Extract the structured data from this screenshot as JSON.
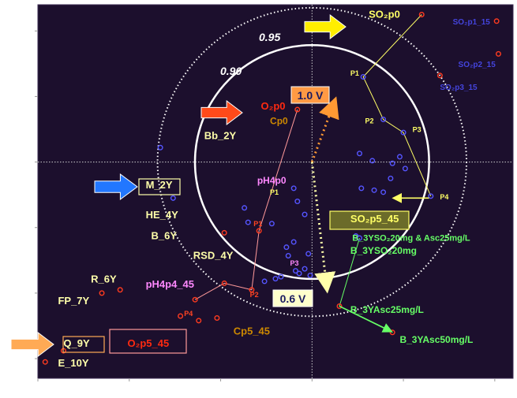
{
  "chart_data": {
    "type": "scatter",
    "title": "",
    "xlabel": "",
    "ylabel": "",
    "xlim": [
      -150,
      110
    ],
    "ylim": [
      -33,
      24
    ],
    "x_ticks": [
      -150,
      -100,
      -50,
      0,
      50,
      100
    ],
    "y_ticks": [
      -30,
      -20,
      -10,
      0,
      10,
      20
    ],
    "grid": false,
    "background": "#1c0f2d",
    "colors": {
      "red_point": "#ff3b1f",
      "blue_point": "#5555ff",
      "circle": "#ffffff",
      "yellow": "#ffff66",
      "salmon": "#ff8a80",
      "green": "#66ff66",
      "orange": "#ff9933"
    },
    "circle_labels": [
      "0.95",
      "0.90"
    ],
    "circle_radii": [
      0.95,
      0.9
    ],
    "voltage_labels": [
      "1.0 V",
      "0.6 V"
    ],
    "vector_1V": {
      "from": [
        0,
        0
      ],
      "to": [
        12,
        9
      ]
    },
    "vector_06V": {
      "from": [
        0,
        0
      ],
      "to": [
        8,
        -19
      ]
    },
    "series": [
      {
        "name": "red",
        "points": [
          {
            "x": 60,
            "y": 22.5
          },
          {
            "x": 101,
            "y": 21.5
          },
          {
            "x": 102,
            "y": 16.5
          },
          {
            "x": 70,
            "y": 13.2
          },
          {
            "x": -8,
            "y": 8
          },
          {
            "x": -48,
            "y": -10.8
          },
          {
            "x": -29,
            "y": -10.5
          },
          {
            "x": -33,
            "y": -19.5
          },
          {
            "x": -48,
            "y": -18.5
          },
          {
            "x": -64,
            "y": -21
          },
          {
            "x": -72,
            "y": -23.5
          },
          {
            "x": -62,
            "y": -24.2
          },
          {
            "x": -52,
            "y": -23.8
          },
          {
            "x": -105,
            "y": -19.5
          },
          {
            "x": -115,
            "y": -20
          },
          {
            "x": -136,
            "y": -28.8
          },
          {
            "x": -146,
            "y": -30.5
          },
          {
            "x": 15,
            "y": -22
          },
          {
            "x": 44,
            "y": -26
          }
        ]
      },
      {
        "name": "blue",
        "points": [
          {
            "x": -83,
            "y": 2.2
          },
          {
            "x": -76,
            "y": -5.5
          },
          {
            "x": 28,
            "y": 13
          },
          {
            "x": 39,
            "y": 6.5
          },
          {
            "x": 50,
            "y": 4.5
          },
          {
            "x": 65,
            "y": -5.2
          },
          {
            "x": 26,
            "y": 1.3
          },
          {
            "x": 33,
            "y": 0.2
          },
          {
            "x": 44,
            "y": -0.2
          },
          {
            "x": 51,
            "y": -1
          },
          {
            "x": 48,
            "y": 0.8
          },
          {
            "x": 43,
            "y": -2.5
          },
          {
            "x": 27,
            "y": -4
          },
          {
            "x": 34,
            "y": -4.3
          },
          {
            "x": 39,
            "y": -4.6
          },
          {
            "x": 24,
            "y": -11.3
          },
          {
            "x": 26,
            "y": -11.6
          },
          {
            "x": -10,
            "y": -4
          },
          {
            "x": -8,
            "y": -6
          },
          {
            "x": -4,
            "y": -8
          },
          {
            "x": -37,
            "y": -7
          },
          {
            "x": -35,
            "y": -9.2
          },
          {
            "x": -22,
            "y": -9.4
          },
          {
            "x": -14,
            "y": -13
          },
          {
            "x": -10,
            "y": -12.2
          },
          {
            "x": -2,
            "y": -14
          },
          {
            "x": -13,
            "y": -14.3
          },
          {
            "x": -9,
            "y": -16.6
          },
          {
            "x": -7,
            "y": -17
          },
          {
            "x": -1,
            "y": -17.3
          },
          {
            "x": -4,
            "y": -16.3
          },
          {
            "x": -17,
            "y": -17.5
          },
          {
            "x": -20,
            "y": -17.8
          },
          {
            "x": -26,
            "y": -18.2
          }
        ]
      }
    ],
    "trajectories": [
      {
        "name": "SO2",
        "color": "#ffff66",
        "points": [
          [
            60,
            22.5
          ],
          [
            28,
            13
          ],
          [
            39,
            6.5
          ],
          [
            50,
            4.5
          ],
          [
            65,
            -5.2
          ]
        ]
      },
      {
        "name": "pH4",
        "color": "#ff9a9a",
        "points": [
          [
            -8,
            8
          ],
          [
            -29,
            -10.5
          ],
          [
            -33,
            -19.5
          ],
          [
            -48,
            -18.5
          ],
          [
            -64,
            -21
          ]
        ]
      },
      {
        "name": "B_3Y",
        "color": "#66ff66",
        "points": [
          [
            26,
            -11.6
          ],
          [
            15,
            -22
          ],
          [
            44,
            -26
          ]
        ]
      }
    ],
    "point_labels": [
      {
        "name": "SO2p0",
        "text": "SO₂p0",
        "x": 31,
        "y": 22,
        "color": "#ffff66",
        "size": 13
      },
      {
        "name": "SO2p1_15",
        "text": "SO₂p1_15",
        "x": 77,
        "y": 21,
        "color": "#4444dd",
        "size": 10
      },
      {
        "name": "SO2p2_15",
        "text": "SO₂p2_15",
        "x": 80,
        "y": 14.5,
        "color": "#4444dd",
        "size": 10
      },
      {
        "name": "SO2p3_15",
        "text": "SO₂p3_15",
        "x": 70,
        "y": 11,
        "color": "#4444dd",
        "size": 10
      },
      {
        "name": "O2p0",
        "text": "O₂p0",
        "x": -28,
        "y": 8,
        "color": "#ff2a10",
        "size": 13
      },
      {
        "name": "Cp0",
        "text": "Cp0",
        "x": -23,
        "y": 5.8,
        "color": "#cc8800",
        "size": 12
      },
      {
        "name": "Bb_2Y",
        "text": "Bb_2Y",
        "x": -59,
        "y": 3.5,
        "color": "#ffffaa",
        "size": 13
      },
      {
        "name": "pH4p0",
        "text": "pH4p0",
        "x": -30,
        "y": -3.3,
        "color": "#ff88ff",
        "size": 12
      },
      {
        "name": "M_2Y",
        "text": "M_2Y",
        "x": -91,
        "y": -4,
        "color": "#ffffaa",
        "size": 13
      },
      {
        "name": "HE_4Y",
        "text": "HE_4Y",
        "x": -91,
        "y": -8.6,
        "color": "#ffffaa",
        "size": 13
      },
      {
        "name": "B_6Y",
        "text": "B_6Y",
        "x": -88,
        "y": -11.8,
        "color": "#ffffaa",
        "size": 13
      },
      {
        "name": "RSD_4Y",
        "text": "RSD_4Y",
        "x": -65,
        "y": -14.8,
        "color": "#ffffaa",
        "size": 13
      },
      {
        "name": "R_6Y",
        "text": "R_6Y",
        "x": -121,
        "y": -18.4,
        "color": "#ffffaa",
        "size": 13
      },
      {
        "name": "FP_7Y",
        "text": "FP_7Y",
        "x": -139,
        "y": -21.7,
        "color": "#ffffaa",
        "size": 13
      },
      {
        "name": "pH4p4_45",
        "text": "pH4p4_45",
        "x": -91,
        "y": -19.2,
        "color": "#ff88ff",
        "size": 13
      },
      {
        "name": "Cp5_45",
        "text": "Cp5_45",
        "x": -43,
        "y": -26.3,
        "color": "#cc8800",
        "size": 13
      },
      {
        "name": "Q_9Y",
        "text": "Q_9Y",
        "x": -136,
        "y": -28.2,
        "color": "#ffffaa",
        "size": 13
      },
      {
        "name": "E_10Y",
        "text": "E_10Y",
        "x": -139,
        "y": -31.2,
        "color": "#ffffaa",
        "size": 13
      },
      {
        "name": "O2p5_45",
        "text": "O₂p5_45",
        "x": -101,
        "y": -28.2,
        "color": "#ff2a10",
        "size": 13
      },
      {
        "name": "SO2p5_45",
        "text": "SO₂p5_45",
        "x": 21,
        "y": -9.2,
        "color": "#ffff66",
        "size": 13
      },
      {
        "name": "B_3YSO2_20mg_Asc25",
        "text": "B_3YSO₂20mg & Asc25mg/L",
        "x": 22,
        "y": -12,
        "color": "#66ff66",
        "size": 11
      },
      {
        "name": "B_3YSO2_20mg",
        "text": "B_3YSO₂20mg",
        "x": 21,
        "y": -14,
        "color": "#66ff66",
        "size": 12
      },
      {
        "name": "B_3YAsc25mg",
        "text": "B_3YAsc25mg/L",
        "x": 21,
        "y": -23,
        "color": "#66ff66",
        "size": 12
      },
      {
        "name": "B_3YAsc50mg",
        "text": "B_3YAsc50mg/L",
        "x": 48,
        "y": -27.6,
        "color": "#66ff66",
        "size": 12
      },
      {
        "name": "P1-SO2",
        "text": "P1",
        "x": 21,
        "y": 13.2,
        "color": "#ffff66",
        "size": 9
      },
      {
        "name": "P2-SO2",
        "text": "P2",
        "x": 29,
        "y": 5.9,
        "color": "#ffff66",
        "size": 9
      },
      {
        "name": "P3-SO2",
        "text": "P3",
        "x": 55,
        "y": 4.6,
        "color": "#ffff66",
        "size": 9
      },
      {
        "name": "P4-SO2",
        "text": "P4",
        "x": 70,
        "y": -5.7,
        "color": "#ffff66",
        "size": 9
      },
      {
        "name": "P1-pH4",
        "text": "P1",
        "x": -23,
        "y": -5,
        "color": "#ffff66",
        "size": 9
      },
      {
        "name": "P1-red",
        "text": "P1",
        "x": -32,
        "y": -9.8,
        "color": "#ff4422",
        "size": 9
      },
      {
        "name": "P2-red",
        "text": "P2",
        "x": -34,
        "y": -20.6,
        "color": "#ff4422",
        "size": 9
      },
      {
        "name": "P3-red",
        "text": "P3",
        "x": -12,
        "y": -15.8,
        "color": "#ff88ff",
        "size": 9
      },
      {
        "name": "P4-red",
        "text": "P4",
        "x": -70,
        "y": -23.5,
        "color": "#ff4422",
        "size": 9
      }
    ],
    "boxed_labels": [
      "M_2Y",
      "Q_9Y",
      "O2p5_45",
      "SO2p5_45",
      "1.0 V",
      "0.6 V"
    ],
    "arrows": [
      {
        "name": "so2p0-arrow",
        "color": "#ffee00"
      },
      {
        "name": "o2p0-arrow",
        "color": "#ff4a1a"
      },
      {
        "name": "m2y-arrow",
        "color": "#2277ff"
      },
      {
        "name": "q9y-arrow",
        "color": "#ffaa55"
      },
      {
        "name": "p4-yellow-arrow",
        "color": "#ffff66"
      },
      {
        "name": "asc50-green-arrow",
        "color": "#66ff66"
      }
    ]
  }
}
